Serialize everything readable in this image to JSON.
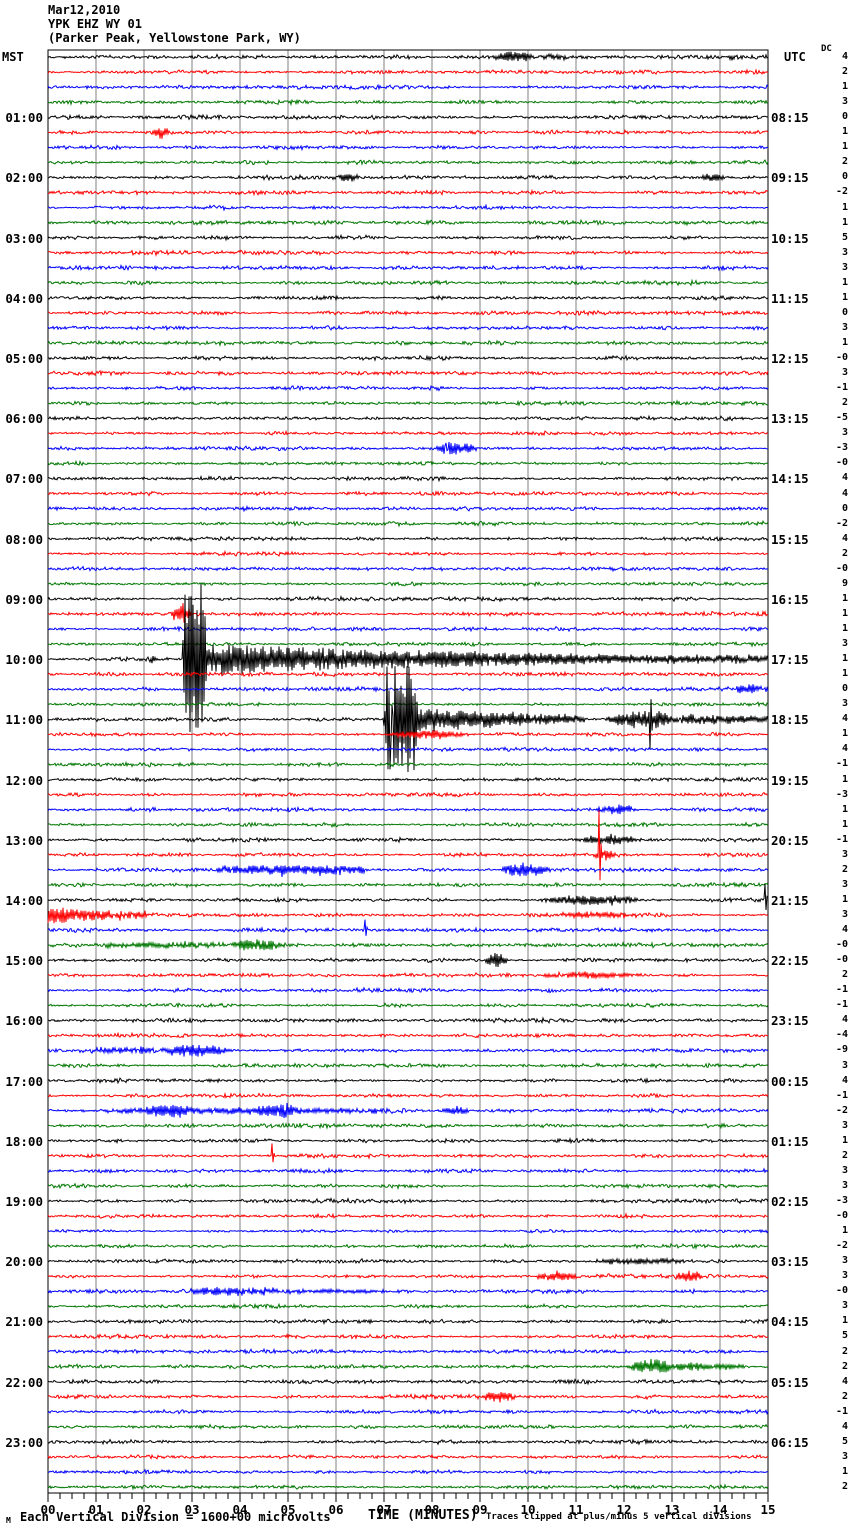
{
  "header": {
    "date": "Mar12,2010",
    "station": "YPK EHZ WY 01",
    "location": "(Parker Peak, Yellowstone Park, WY)",
    "left_tz": "MST",
    "right_tz": "UTC",
    "dc_label": "DC"
  },
  "footer": {
    "logo_mark": "M",
    "scale_text": "Each Vertical Division = 1600+00 microvolts",
    "xlabel": "TIME (MINUTES)",
    "clip_text": "Traces clipped at plus/minus 5 vertical divisions"
  },
  "chart_data": {
    "type": "line",
    "title": "YPK EHZ WY 01 (Parker Peak, Yellowstone Park, WY) Mar12,2010",
    "xlabel": "TIME (MINUTES)",
    "minutes_per_line": 15,
    "lines_per_hour": 4,
    "num_lines": 96,
    "x_tick_labels": [
      "00",
      "01",
      "02",
      "03",
      "04",
      "05",
      "06",
      "07",
      "08",
      "09",
      "10",
      "11",
      "12",
      "13",
      "14",
      "15"
    ],
    "left_hour_labels": [
      "01:00",
      "02:00",
      "03:00",
      "04:00",
      "05:00",
      "06:00",
      "07:00",
      "08:00",
      "09:00",
      "10:00",
      "11:00",
      "12:00",
      "13:00",
      "14:00",
      "15:00",
      "16:00",
      "17:00",
      "18:00",
      "19:00",
      "20:00",
      "21:00",
      "22:00",
      "23:00"
    ],
    "right_hour_labels": [
      "08:15",
      "09:15",
      "10:15",
      "11:15",
      "12:15",
      "13:15",
      "14:15",
      "15:15",
      "16:15",
      "17:15",
      "18:15",
      "19:15",
      "20:15",
      "21:15",
      "22:15",
      "23:15",
      "00:15",
      "01:15",
      "02:15",
      "03:15",
      "04:15",
      "05:15",
      "06:15"
    ],
    "dc_values": [
      "4",
      "2",
      "1",
      "3",
      "0",
      "1",
      "1",
      "2",
      "0",
      "-2",
      "1",
      "1",
      "5",
      "3",
      "3",
      "1",
      "1",
      "0",
      "3",
      "1",
      "-0",
      "3",
      "-1",
      "2",
      "-5",
      "3",
      "-3",
      "-0",
      "4",
      "4",
      "0",
      "-2",
      "4",
      "2",
      "-0",
      "9",
      "1",
      "1",
      "1",
      "3",
      "1",
      "1",
      "0",
      "3",
      "4",
      "1",
      "4",
      "-1",
      "1",
      "-3",
      "1",
      "1",
      "-1",
      "3",
      "2",
      "3",
      "1",
      "3",
      "4",
      "-0",
      "-0",
      "2",
      "-1",
      "-1",
      "4",
      "-4",
      "-9",
      "3",
      "4",
      "-1",
      "-2",
      "3",
      "1",
      "2",
      "3",
      "3",
      "-3",
      "-0",
      "1",
      "-2",
      "3",
      "3",
      "-0",
      "3",
      "1",
      "5",
      "2",
      "2",
      "4",
      "2",
      "-1",
      "4",
      "5",
      "3",
      "1",
      "2"
    ],
    "trace_color_cycle": [
      "#000000",
      "#ff0000",
      "#0000ff",
      "#007700"
    ],
    "grid_color": "#808080",
    "clip_divisions": 5,
    "events": [
      {
        "row": 0,
        "type": "burst",
        "t0": 9.25,
        "t1": 10.15,
        "amp": 5
      },
      {
        "row": 0,
        "type": "burst",
        "t0": 10.15,
        "t1": 10.9,
        "amp": 2.5
      },
      {
        "row": 0,
        "type": "burst",
        "t0": 14.05,
        "t1": 14.6,
        "amp": 3
      },
      {
        "row": 5,
        "type": "burst",
        "t0": 2.15,
        "t1": 2.55,
        "amp": 6
      },
      {
        "row": 8,
        "type": "burst",
        "t0": 6.05,
        "t1": 6.5,
        "amp": 4
      },
      {
        "row": 8,
        "type": "burst",
        "t0": 13.6,
        "t1": 14.1,
        "amp": 4
      },
      {
        "row": 26,
        "type": "burst",
        "t0": 8.05,
        "t1": 8.95,
        "amp": 7
      },
      {
        "row": 26,
        "type": "spike",
        "t0": 8.3,
        "amp": 9
      },
      {
        "row": 37,
        "type": "burst",
        "t0": 2.55,
        "t1": 3.0,
        "amp": 10
      },
      {
        "row": 40,
        "type": "burst",
        "t0": 2.1,
        "t1": 2.3,
        "amp": 3
      },
      {
        "row": 40,
        "type": "clip",
        "t0": 2.8,
        "t1": 3.3,
        "amp": 72
      },
      {
        "row": 40,
        "type": "decay",
        "t0": 3.3,
        "t1": 15,
        "amp": 16,
        "amp1": 3
      },
      {
        "row": 42,
        "type": "burst",
        "t0": 14.2,
        "t1": 15,
        "amp": 4
      },
      {
        "row": 44,
        "type": "clip",
        "t0": 7.0,
        "t1": 7.7,
        "amp": 50
      },
      {
        "row": 44,
        "type": "spike",
        "t0": 7.15,
        "amp": -72
      },
      {
        "row": 44,
        "type": "decay",
        "t0": 7.7,
        "t1": 11.2,
        "amp": 13,
        "amp1": 4
      },
      {
        "row": 44,
        "type": "burst",
        "t0": 11.6,
        "t1": 13.2,
        "amp": 9
      },
      {
        "row": 44,
        "type": "spike",
        "t0": 12.55,
        "amp": -28
      },
      {
        "row": 44,
        "type": "decay",
        "t0": 13.2,
        "t1": 15,
        "amp": 5,
        "amp1": 3
      },
      {
        "row": 45,
        "type": "burst",
        "t0": 7.0,
        "t1": 8.8,
        "amp": 4
      },
      {
        "row": 50,
        "type": "burst",
        "t0": 11.4,
        "t1": 12.3,
        "amp": 5
      },
      {
        "row": 52,
        "type": "burst",
        "t0": 11.05,
        "t1": 12.4,
        "amp": 5
      },
      {
        "row": 53,
        "type": "burst",
        "t0": 11.35,
        "t1": 11.85,
        "amp": 6
      },
      {
        "row": 53,
        "type": "spike",
        "t0": 11.48,
        "amp": 42
      },
      {
        "row": 54,
        "type": "tremor",
        "t0": 3.5,
        "t1": 6.6,
        "amp": 6
      },
      {
        "row": 54,
        "type": "burst",
        "t0": 9.4,
        "t1": 10.5,
        "amp": 7
      },
      {
        "row": 56,
        "type": "burst",
        "t0": 10.2,
        "t1": 12.4,
        "amp": 5
      },
      {
        "row": 56,
        "type": "spike",
        "t0": 14.93,
        "amp": 17
      },
      {
        "row": 57,
        "type": "decay",
        "t0": 0,
        "t1": 2.2,
        "amp": 10,
        "amp1": 2
      },
      {
        "row": 57,
        "type": "burst",
        "t0": 10.5,
        "t1": 12.4,
        "amp": 3
      },
      {
        "row": 58,
        "type": "spike",
        "t0": 6.6,
        "amp": 10
      },
      {
        "row": 59,
        "type": "tremor",
        "t0": 1.2,
        "t1": 3.7,
        "amp": 3
      },
      {
        "row": 59,
        "type": "burst",
        "t0": 3.8,
        "t1": 4.9,
        "amp": 6
      },
      {
        "row": 60,
        "type": "burst",
        "t0": 9.1,
        "t1": 9.6,
        "amp": 7
      },
      {
        "row": 61,
        "type": "burst",
        "t0": 10.2,
        "t1": 12.5,
        "amp": 3
      },
      {
        "row": 66,
        "type": "tremor",
        "t0": 0.9,
        "t1": 2.2,
        "amp": 3
      },
      {
        "row": 66,
        "type": "burst",
        "t0": 2.25,
        "t1": 3.85,
        "amp": 6
      },
      {
        "row": 70,
        "type": "tremor",
        "t0": 1.1,
        "t1": 7.3,
        "amp": 3
      },
      {
        "row": 70,
        "type": "burst",
        "t0": 2.0,
        "t1": 3.0,
        "amp": 5
      },
      {
        "row": 70,
        "type": "burst",
        "t0": 4.3,
        "t1": 5.3,
        "amp": 5
      },
      {
        "row": 70,
        "type": "burst",
        "t0": 8.2,
        "t1": 8.8,
        "amp": 4
      },
      {
        "row": 73,
        "type": "spike",
        "t0": 4.67,
        "amp": 12
      },
      {
        "row": 80,
        "type": "burst",
        "t0": 11.3,
        "t1": 13.3,
        "amp": 3
      },
      {
        "row": 81,
        "type": "burst",
        "t0": 10.1,
        "t1": 11.1,
        "amp": 4
      },
      {
        "row": 81,
        "type": "burst",
        "t0": 13.05,
        "t1": 13.7,
        "amp": 5
      },
      {
        "row": 82,
        "type": "tremor",
        "t0": 2.95,
        "t1": 4.8,
        "amp": 5
      },
      {
        "row": 82,
        "type": "tremor",
        "t0": 4.8,
        "t1": 7.0,
        "amp": 2
      },
      {
        "row": 87,
        "type": "burst",
        "t0": 12.1,
        "t1": 13.1,
        "amp": 8
      },
      {
        "row": 87,
        "type": "decay",
        "t0": 13.1,
        "t1": 14.5,
        "amp": 4,
        "amp1": 2
      },
      {
        "row": 89,
        "type": "burst",
        "t0": 9.0,
        "t1": 9.75,
        "amp": 5
      }
    ]
  }
}
